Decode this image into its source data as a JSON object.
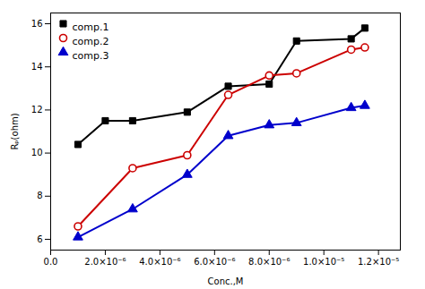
{
  "chart_data": {
    "type": "line",
    "xlabel": "Conc.,M",
    "ylabel": "Rₚ(ohm)",
    "xlim": [
      0.0,
      1.28e-05
    ],
    "ylim": [
      5.5,
      16.5
    ],
    "xticks": [
      {
        "value": 0.0,
        "label": "0.0"
      },
      {
        "value": 2e-06,
        "label": "2.0×10⁻⁶"
      },
      {
        "value": 4e-06,
        "label": "4.0×10⁻⁶"
      },
      {
        "value": 6e-06,
        "label": "6.0×10⁻⁶"
      },
      {
        "value": 8e-06,
        "label": "8.0×10⁻⁶"
      },
      {
        "value": 1e-05,
        "label": "1.0×10⁻⁵"
      },
      {
        "value": 1.2e-05,
        "label": "1.2×10⁻⁵"
      }
    ],
    "yticks": [
      6,
      8,
      10,
      12,
      14,
      16
    ],
    "grid": false,
    "legend": "upper left",
    "series": [
      {
        "name": "comp.1",
        "color": "#000000",
        "marker": "square",
        "x": [
          1e-06,
          2e-06,
          3e-06,
          5e-06,
          6.5e-06,
          8e-06,
          9e-06,
          1.1e-05,
          1.15e-05
        ],
        "values": [
          10.4,
          11.5,
          11.5,
          11.9,
          13.1,
          13.2,
          15.2,
          15.3,
          15.8
        ]
      },
      {
        "name": "comp.2",
        "color": "#cc0000",
        "marker": "open_circle",
        "x": [
          1e-06,
          3e-06,
          5e-06,
          6.5e-06,
          8e-06,
          9e-06,
          1.1e-05,
          1.15e-05
        ],
        "values": [
          6.6,
          9.3,
          9.9,
          12.7,
          13.6,
          13.7,
          14.8,
          14.9
        ]
      },
      {
        "name": "comp.3",
        "color": "#0000cc",
        "marker": "triangle",
        "x": [
          1e-06,
          3e-06,
          5e-06,
          6.5e-06,
          8e-06,
          9e-06,
          1.1e-05,
          1.15e-05
        ],
        "values": [
          6.1,
          7.4,
          9.0,
          10.8,
          11.3,
          11.4,
          12.1,
          12.2
        ]
      }
    ]
  }
}
